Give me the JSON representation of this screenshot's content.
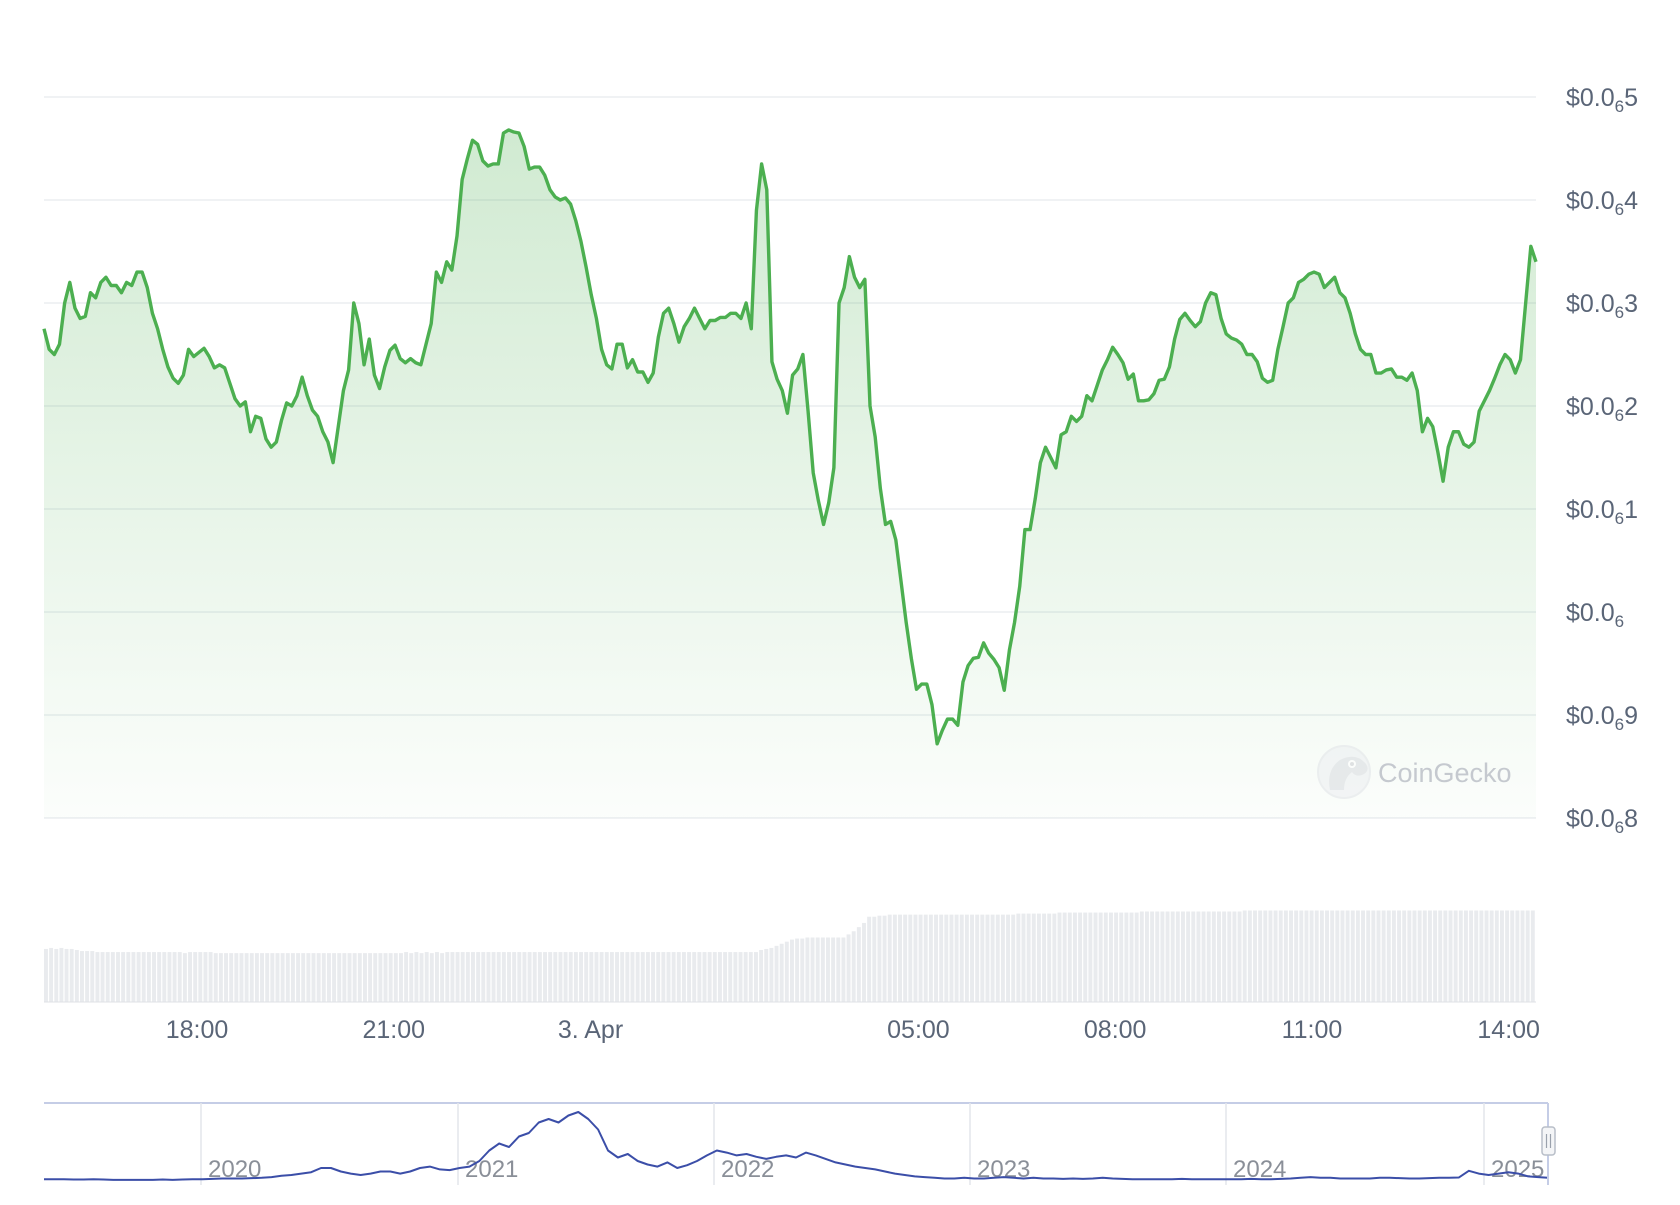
{
  "chart_data": {
    "type": "area",
    "colors": {
      "line": "#4caf50",
      "fill": "#4caf50",
      "volume": "#e9ebee",
      "navigator_line": "#3b4ea8",
      "grid": "#e6e9ee"
    },
    "yaxis": {
      "min": 5.8e-08,
      "max": 6.5e-08,
      "ticks": [
        {
          "value": 6.5e-08,
          "prefix": "$0.0",
          "sub": "6",
          "digits": "5"
        },
        {
          "value": 6.4e-08,
          "prefix": "$0.0",
          "sub": "6",
          "digits": "4"
        },
        {
          "value": 6.3e-08,
          "prefix": "$0.0",
          "sub": "6",
          "digits": "3"
        },
        {
          "value": 6.2e-08,
          "prefix": "$0.0",
          "sub": "6",
          "digits": "2"
        },
        {
          "value": 6.1e-08,
          "prefix": "$0.0",
          "sub": "6",
          "digits": "1"
        },
        {
          "value": 6e-08,
          "prefix": "$0.0",
          "sub": "6",
          "digits": ""
        },
        {
          "value": 5.9e-08,
          "prefix": "$0.0",
          "sub": "6",
          "digits": "9"
        },
        {
          "value": 5.8e-08,
          "prefix": "$0.0",
          "sub": "6",
          "digits": "8"
        }
      ]
    },
    "xaxis": {
      "range": [
        "2 Apr 15:40",
        "3 Apr 14:25"
      ],
      "ticks": [
        {
          "label": "18:00",
          "value": "2 Apr 18:00"
        },
        {
          "label": "21:00",
          "value": "2 Apr 21:00"
        },
        {
          "label": "3. Apr",
          "value": "3 Apr 00:00"
        },
        {
          "label": "05:00",
          "value": "3 Apr 05:00"
        },
        {
          "label": "08:00",
          "value": "3 Apr 08:00"
        },
        {
          "label": "11:00",
          "value": "3 Apr 11:00"
        },
        {
          "label": "14:00",
          "value": "3 Apr 14:00"
        }
      ]
    },
    "series": [
      {
        "type": "area",
        "values": [
          6.275e-08,
          6.255e-08,
          6.25e-08,
          6.26e-08,
          6.3e-08,
          6.32e-08,
          6.295e-08,
          6.285e-08,
          6.287e-08,
          6.31e-08,
          6.305e-08,
          6.32e-08,
          6.325e-08,
          6.317e-08,
          6.317e-08,
          6.31e-08,
          6.32e-08,
          6.317e-08,
          6.33e-08,
          6.33e-08,
          6.315e-08,
          6.29e-08,
          6.275e-08,
          6.255e-08,
          6.238e-08,
          6.227e-08,
          6.222e-08,
          6.23e-08,
          6.255e-08,
          6.248e-08,
          6.252e-08,
          6.256e-08,
          6.248e-08,
          6.237e-08,
          6.24e-08,
          6.237e-08,
          6.222e-08,
          6.207e-08,
          6.2e-08,
          6.204e-08,
          6.175e-08,
          6.19e-08,
          6.188e-08,
          6.168e-08,
          6.16e-08,
          6.165e-08,
          6.186e-08,
          6.203e-08,
          6.2e-08,
          6.21e-08,
          6.228e-08,
          6.21e-08,
          6.196e-08,
          6.19e-08,
          6.175e-08,
          6.165e-08,
          6.145e-08,
          6.18e-08,
          6.215e-08,
          6.235e-08,
          6.3e-08,
          6.28e-08,
          6.24e-08,
          6.265e-08,
          6.23e-08,
          6.217e-08,
          6.238e-08,
          6.254e-08,
          6.259e-08,
          6.246e-08,
          6.242e-08,
          6.246e-08,
          6.242e-08,
          6.24e-08,
          6.26e-08,
          6.28e-08,
          6.33e-08,
          6.32e-08,
          6.34e-08,
          6.332e-08,
          6.365e-08,
          6.42e-08,
          6.44e-08,
          6.458e-08,
          6.454e-08,
          6.438e-08,
          6.433e-08,
          6.435e-08,
          6.435e-08,
          6.465e-08,
          6.468e-08,
          6.466e-08,
          6.465e-08,
          6.452e-08,
          6.43e-08,
          6.432e-08,
          6.432e-08,
          6.424e-08,
          6.41e-08,
          6.403e-08,
          6.4e-08,
          6.402e-08,
          6.396e-08,
          6.38e-08,
          6.36e-08,
          6.335e-08,
          6.308e-08,
          6.285e-08,
          6.255e-08,
          6.24e-08,
          6.236e-08,
          6.26e-08,
          6.26e-08,
          6.237e-08,
          6.245e-08,
          6.233e-08,
          6.233e-08,
          6.223e-08,
          6.232e-08,
          6.267e-08,
          6.29e-08,
          6.295e-08,
          6.28e-08,
          6.262e-08,
          6.277e-08,
          6.285e-08,
          6.295e-08,
          6.285e-08,
          6.275e-08,
          6.283e-08,
          6.283e-08,
          6.286e-08,
          6.286e-08,
          6.29e-08,
          6.29e-08,
          6.285e-08,
          6.3e-08,
          6.275e-08,
          6.39e-08,
          6.435e-08,
          6.41e-08,
          6.243e-08,
          6.226e-08,
          6.215e-08,
          6.193e-08,
          6.23e-08,
          6.236e-08,
          6.25e-08,
          6.195e-08,
          6.135e-08,
          6.108e-08,
          6.085e-08,
          6.106e-08,
          6.14e-08,
          6.3e-08,
          6.315e-08,
          6.345e-08,
          6.325e-08,
          6.315e-08,
          6.323e-08,
          6.2e-08,
          6.17e-08,
          6.12e-08,
          6.085e-08,
          6.088e-08,
          6.07e-08,
          6.03e-08,
          5.99e-08,
          5.955e-08,
          5.925e-08,
          5.93e-08,
          5.93e-08,
          5.91e-08,
          5.872e-08,
          5.885e-08,
          5.896e-08,
          5.896e-08,
          5.89e-08,
          5.932e-08,
          5.948e-08,
          5.955e-08,
          5.956e-08,
          5.97e-08,
          5.96e-08,
          5.954e-08,
          5.946e-08,
          5.924e-08,
          5.963e-08,
          5.99e-08,
          6.025e-08,
          6.08e-08,
          6.08e-08,
          6.11e-08,
          6.145e-08,
          6.16e-08,
          6.15e-08,
          6.14e-08,
          6.172e-08,
          6.175e-08,
          6.19e-08,
          6.185e-08,
          6.19e-08,
          6.21e-08,
          6.205e-08,
          6.22e-08,
          6.235e-08,
          6.245e-08,
          6.257e-08,
          6.25e-08,
          6.242e-08,
          6.226e-08,
          6.231e-08,
          6.205e-08,
          6.205e-08,
          6.206e-08,
          6.212e-08,
          6.225e-08,
          6.226e-08,
          6.238e-08,
          6.265e-08,
          6.284e-08,
          6.29e-08,
          6.283e-08,
          6.277e-08,
          6.282e-08,
          6.3e-08,
          6.31e-08,
          6.308e-08,
          6.285e-08,
          6.27e-08,
          6.266e-08,
          6.264e-08,
          6.26e-08,
          6.25e-08,
          6.25e-08,
          6.243e-08,
          6.227e-08,
          6.223e-08,
          6.225e-08,
          6.255e-08,
          6.277e-08,
          6.3e-08,
          6.305e-08,
          6.32e-08,
          6.323e-08,
          6.328e-08,
          6.33e-08,
          6.328e-08,
          6.315e-08,
          6.32e-08,
          6.325e-08,
          6.31e-08,
          6.305e-08,
          6.29e-08,
          6.27e-08,
          6.255e-08,
          6.25e-08,
          6.25e-08,
          6.232e-08,
          6.232e-08,
          6.235e-08,
          6.236e-08,
          6.228e-08,
          6.228e-08,
          6.225e-08,
          6.232e-08,
          6.215e-08,
          6.175e-08,
          6.188e-08,
          6.18e-08,
          6.155e-08,
          6.127e-08,
          6.16e-08,
          6.175e-08,
          6.175e-08,
          6.163e-08,
          6.16e-08,
          6.165e-08,
          6.195e-08,
          6.205e-08,
          6.215e-08,
          6.227e-08,
          6.24e-08,
          6.25e-08,
          6.245e-08,
          6.232e-08,
          6.245e-08,
          6.3e-08,
          6.355e-08,
          6.34e-08
        ]
      },
      {
        "name": "",
        "type": "volume",
        "relative_values": [
          0.51,
          0.52,
          0.51,
          0.52,
          0.51,
          0.51,
          0.5,
          0.49,
          0.49,
          0.49,
          0.48,
          0.48,
          0.48,
          0.48,
          0.48,
          0.48,
          0.48,
          0.48,
          0.48,
          0.48,
          0.48,
          0.48,
          0.48,
          0.48,
          0.48,
          0.48,
          0.48,
          0.47,
          0.48,
          0.48,
          0.48,
          0.48,
          0.48,
          0.47,
          0.47,
          0.47,
          0.47,
          0.47,
          0.47,
          0.47,
          0.47,
          0.47,
          0.47,
          0.47,
          0.47,
          0.47,
          0.47,
          0.47,
          0.47,
          0.47,
          0.47,
          0.47,
          0.47,
          0.47,
          0.47,
          0.47,
          0.47,
          0.47,
          0.47,
          0.47,
          0.47,
          0.47,
          0.47,
          0.47,
          0.47,
          0.47,
          0.47,
          0.47,
          0.47,
          0.47,
          0.48,
          0.47,
          0.48,
          0.47,
          0.48,
          0.47,
          0.48,
          0.47,
          0.48,
          0.48,
          0.48,
          0.48,
          0.48,
          0.48,
          0.48,
          0.48,
          0.48,
          0.48,
          0.48,
          0.48,
          0.48,
          0.48,
          0.48,
          0.48,
          0.48,
          0.48,
          0.48,
          0.48,
          0.48,
          0.48,
          0.48,
          0.48,
          0.48,
          0.48,
          0.48,
          0.48,
          0.48,
          0.48,
          0.48,
          0.48,
          0.48,
          0.48,
          0.48,
          0.48,
          0.48,
          0.48,
          0.48,
          0.48,
          0.48,
          0.48,
          0.48,
          0.48,
          0.48,
          0.48,
          0.48,
          0.48,
          0.48,
          0.48,
          0.48,
          0.48,
          0.48,
          0.48,
          0.48,
          0.48,
          0.48,
          0.48,
          0.48,
          0.48,
          0.48,
          0.5,
          0.51,
          0.52,
          0.54,
          0.56,
          0.58,
          0.6,
          0.61,
          0.61,
          0.62,
          0.62,
          0.62,
          0.62,
          0.62,
          0.62,
          0.62,
          0.62,
          0.65,
          0.68,
          0.72,
          0.76,
          0.82,
          0.82,
          0.83,
          0.83,
          0.84,
          0.84,
          0.84,
          0.84,
          0.84,
          0.84,
          0.84,
          0.84,
          0.84,
          0.84,
          0.84,
          0.84,
          0.84,
          0.84,
          0.84,
          0.84,
          0.84,
          0.84,
          0.84,
          0.84,
          0.84,
          0.84,
          0.84,
          0.84,
          0.84,
          0.85,
          0.85,
          0.85,
          0.85,
          0.85,
          0.85,
          0.85,
          0.85,
          0.86,
          0.86,
          0.86,
          0.86,
          0.86,
          0.86,
          0.86,
          0.86,
          0.86,
          0.86,
          0.86,
          0.86,
          0.86,
          0.86,
          0.86,
          0.86,
          0.87,
          0.87,
          0.87,
          0.87,
          0.87,
          0.87,
          0.87,
          0.87,
          0.87,
          0.87,
          0.87,
          0.87,
          0.87,
          0.87,
          0.87,
          0.87,
          0.87,
          0.87,
          0.87,
          0.87,
          0.88,
          0.88,
          0.88,
          0.88,
          0.88,
          0.88,
          0.88,
          0.88,
          0.88,
          0.88,
          0.88,
          0.88,
          0.88,
          0.88,
          0.88,
          0.88,
          0.88,
          0.88,
          0.88,
          0.88,
          0.88,
          0.88,
          0.88,
          0.88,
          0.88,
          0.88,
          0.88,
          0.88,
          0.88,
          0.88,
          0.88,
          0.88,
          0.88,
          0.88,
          0.88,
          0.88,
          0.88,
          0.88,
          0.88,
          0.88,
          0.88,
          0.88,
          0.88,
          0.88,
          0.88,
          0.88,
          0.88,
          0.88,
          0.88,
          0.88,
          0.88,
          0.88,
          0.88,
          0.88,
          0.88,
          0.88,
          0.88
        ]
      }
    ],
    "navigator": {
      "labels": [
        "2020",
        "2021",
        "2022",
        "2023",
        "2024",
        "2025"
      ],
      "series_relative": [
        0.04,
        0.04,
        0.04,
        0.035,
        0.035,
        0.04,
        0.035,
        0.03,
        0.03,
        0.03,
        0.03,
        0.03,
        0.035,
        0.03,
        0.035,
        0.04,
        0.04,
        0.045,
        0.05,
        0.05,
        0.05,
        0.055,
        0.06,
        0.07,
        0.09,
        0.1,
        0.12,
        0.14,
        0.2,
        0.2,
        0.15,
        0.12,
        0.1,
        0.12,
        0.15,
        0.15,
        0.12,
        0.15,
        0.2,
        0.22,
        0.18,
        0.17,
        0.2,
        0.22,
        0.3,
        0.45,
        0.55,
        0.5,
        0.65,
        0.7,
        0.85,
        0.9,
        0.85,
        0.95,
        1.0,
        0.9,
        0.75,
        0.45,
        0.35,
        0.4,
        0.3,
        0.25,
        0.22,
        0.28,
        0.2,
        0.24,
        0.3,
        0.38,
        0.45,
        0.42,
        0.38,
        0.4,
        0.36,
        0.33,
        0.36,
        0.38,
        0.35,
        0.42,
        0.38,
        0.33,
        0.28,
        0.25,
        0.22,
        0.2,
        0.18,
        0.15,
        0.12,
        0.1,
        0.08,
        0.07,
        0.06,
        0.05,
        0.05,
        0.06,
        0.05,
        0.05,
        0.06,
        0.07,
        0.06,
        0.05,
        0.06,
        0.05,
        0.05,
        0.045,
        0.05,
        0.045,
        0.05,
        0.06,
        0.05,
        0.045,
        0.04,
        0.04,
        0.04,
        0.04,
        0.04,
        0.045,
        0.04,
        0.04,
        0.04,
        0.04,
        0.04,
        0.04,
        0.045,
        0.04,
        0.04,
        0.045,
        0.05,
        0.06,
        0.07,
        0.06,
        0.06,
        0.05,
        0.05,
        0.05,
        0.05,
        0.06,
        0.06,
        0.055,
        0.05,
        0.05,
        0.055,
        0.06,
        0.06,
        0.065,
        0.16,
        0.12,
        0.1,
        0.12,
        0.14,
        0.12,
        0.08,
        0.07,
        0.06
      ]
    },
    "watermark": "CoinGecko"
  }
}
